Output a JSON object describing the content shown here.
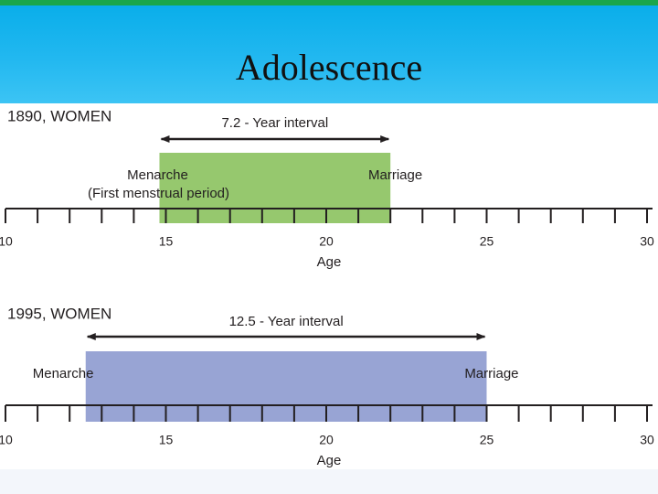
{
  "slide": {
    "title": "Adolescence"
  },
  "colors": {
    "header_stripe": "#1aa64a",
    "header_bg": "#18b4ee",
    "bar_1890": "#96c86e",
    "bar_1995": "#98a4d4",
    "axis": "#231f20"
  },
  "chart_data": [
    {
      "type": "timeline",
      "title": "1890, WOMEN",
      "interval_label": "7.2 - Year interval",
      "start_label": "Menarche",
      "start_sublabel": "(First menstrual period)",
      "end_label": "Marriage",
      "start_age": 14.8,
      "end_age": 22,
      "xlabel": "Age",
      "xlim": [
        10,
        30
      ],
      "ticks": [
        "10",
        "15",
        "20",
        "25",
        "30"
      ]
    },
    {
      "type": "timeline",
      "title": "1995, WOMEN",
      "interval_label": "12.5 - Year interval",
      "start_label": "Menarche",
      "start_sublabel": "",
      "end_label": "Marriage",
      "start_age": 12.5,
      "end_age": 25,
      "xlabel": "Age",
      "xlim": [
        10,
        30
      ],
      "ticks": [
        "10",
        "15",
        "20",
        "25",
        "30"
      ]
    }
  ]
}
